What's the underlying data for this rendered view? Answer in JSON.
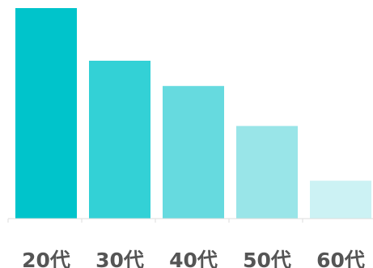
{
  "chart_data": {
    "type": "bar",
    "categories": [
      "20代",
      "30代",
      "40代",
      "50代",
      "60代"
    ],
    "values": [
      100,
      75,
      63,
      44,
      18
    ],
    "ylim": [
      0,
      100
    ],
    "title": "",
    "xlabel": "",
    "ylabel": "",
    "grid": false,
    "legend": "none",
    "colors": [
      "#00C4CB",
      "#33D1D6",
      "#66DADF",
      "#99E5E8",
      "#CCF2F4"
    ],
    "axis_color": "#dddddd",
    "label_color": "#555555"
  }
}
